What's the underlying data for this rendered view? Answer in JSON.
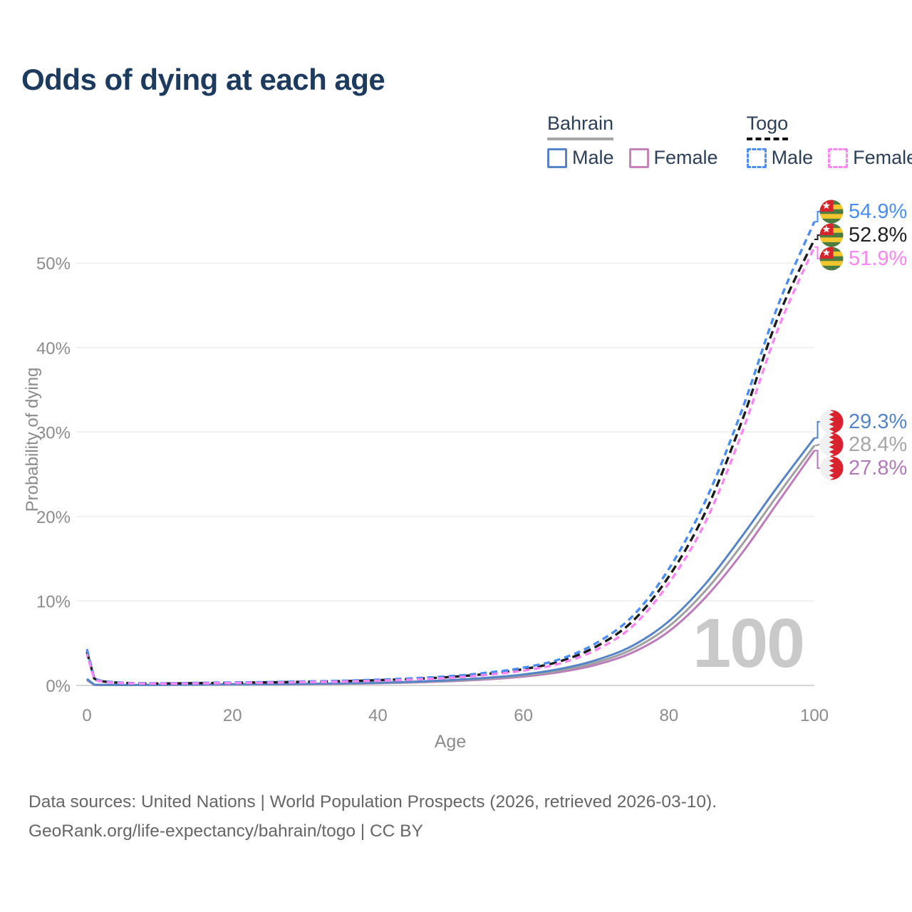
{
  "title": "Odds of dying at each age",
  "legend": {
    "groups": [
      {
        "country": "Bahrain",
        "underline_style": "solid",
        "underline_color": "#a6a6a6",
        "items": [
          {
            "label": "Male",
            "color": "#5585c6",
            "dashed": false
          },
          {
            "label": "Female",
            "color": "#c583bd",
            "dashed": false
          }
        ]
      },
      {
        "country": "Togo",
        "underline_style": "dashed",
        "underline_color": "#151515",
        "items": [
          {
            "label": "Male",
            "color": "#4a8df8",
            "dashed": true
          },
          {
            "label": "Female",
            "color": "#fb86f3",
            "dashed": true
          }
        ]
      }
    ]
  },
  "chart_data": {
    "type": "line",
    "title": "Odds of dying at each age",
    "xlabel": "Age",
    "ylabel": "Probability of dying",
    "xlim": [
      0,
      100
    ],
    "ylim_percent": [
      0,
      57
    ],
    "grid": "horizontal-only",
    "x_ticks": [
      0,
      20,
      40,
      60,
      80,
      100
    ],
    "y_ticks": [
      {
        "value": 0,
        "label": "0%"
      },
      {
        "value": 10,
        "label": "10%"
      },
      {
        "value": 20,
        "label": "20%"
      },
      {
        "value": 30,
        "label": "30%"
      },
      {
        "value": 40,
        "label": "40%"
      },
      {
        "value": 50,
        "label": "50%"
      }
    ],
    "ages": [
      0,
      1,
      2,
      5,
      10,
      15,
      20,
      25,
      30,
      35,
      40,
      45,
      50,
      55,
      60,
      65,
      70,
      75,
      80,
      85,
      90,
      95,
      100
    ],
    "series": [
      {
        "id": "bahrain_female",
        "name": "Bahrain Female",
        "country": "Bahrain",
        "sex": "female",
        "line_style": "solid",
        "color": "#bc7cba",
        "values": [
          0.62,
          0.075,
          0.05,
          0.04,
          0.055,
          0.085,
          0.11,
          0.13,
          0.15,
          0.19,
          0.25,
          0.35,
          0.5,
          0.72,
          1.05,
          1.58,
          2.45,
          3.9,
          6.4,
          10.4,
          15.6,
          21.7,
          27.8
        ],
        "end_label": "27.8%"
      },
      {
        "id": "bahrain_overall",
        "name": "Bahrain Both sexes",
        "country": "Bahrain",
        "sex": "overall",
        "line_style": "solid",
        "color": "#a0a0a0",
        "values": [
          0.7,
          0.08,
          0.055,
          0.045,
          0.06,
          0.1,
          0.12,
          0.14,
          0.17,
          0.21,
          0.28,
          0.4,
          0.56,
          0.8,
          1.17,
          1.76,
          2.72,
          4.3,
          7.0,
          11.2,
          16.6,
          22.6,
          28.4
        ],
        "end_label": "28.4%"
      },
      {
        "id": "bahrain_male",
        "name": "Bahrain Male",
        "country": "Bahrain",
        "sex": "male",
        "line_style": "solid",
        "color": "#5585c6",
        "values": [
          0.78,
          0.09,
          0.06,
          0.05,
          0.07,
          0.11,
          0.14,
          0.16,
          0.19,
          0.24,
          0.32,
          0.45,
          0.63,
          0.9,
          1.3,
          1.95,
          3.0,
          4.7,
          7.6,
          12.0,
          17.6,
          23.6,
          29.3
        ],
        "end_label": "29.3%"
      },
      {
        "id": "togo_overall",
        "name": "Togo Both sexes",
        "country": "Togo",
        "sex": "overall",
        "line_style": "dashed",
        "color": "#1c1c1c",
        "values": [
          4.0,
          0.83,
          0.5,
          0.3,
          0.23,
          0.27,
          0.32,
          0.37,
          0.43,
          0.5,
          0.62,
          0.78,
          1.0,
          1.37,
          1.92,
          2.85,
          4.6,
          7.6,
          12.9,
          20.5,
          31.2,
          43.6,
          52.8
        ],
        "end_label": "52.8%"
      },
      {
        "id": "togo_male",
        "name": "Togo Male",
        "country": "Togo",
        "sex": "male",
        "line_style": "dashed",
        "color": "#4a8df8",
        "values": [
          4.3,
          0.9,
          0.55,
          0.32,
          0.25,
          0.3,
          0.35,
          0.4,
          0.47,
          0.55,
          0.68,
          0.85,
          1.1,
          1.5,
          2.1,
          3.1,
          5.0,
          8.2,
          13.8,
          21.8,
          32.5,
          45.0,
          54.9
        ],
        "end_label": "54.9%"
      },
      {
        "id": "togo_female",
        "name": "Togo Female",
        "country": "Togo",
        "sex": "female",
        "line_style": "dashed",
        "color": "#fb86f3",
        "values": [
          3.7,
          0.76,
          0.46,
          0.27,
          0.21,
          0.24,
          0.29,
          0.33,
          0.39,
          0.45,
          0.56,
          0.7,
          0.9,
          1.25,
          1.75,
          2.6,
          4.2,
          7.0,
          12.1,
          19.3,
          29.8,
          42.2,
          51.9
        ],
        "end_label": "51.9%"
      }
    ],
    "watermark": "100"
  },
  "end_labels": [
    {
      "series": "togo_male",
      "text": "54.9%",
      "value": 54.9,
      "flag": "togo",
      "color": "#4a8df8"
    },
    {
      "series": "togo_overall",
      "text": "52.8%",
      "value": 52.8,
      "flag": "togo",
      "color": "#222222"
    },
    {
      "series": "togo_female",
      "text": "51.9%",
      "value": 51.9,
      "flag": "togo",
      "color": "#fb86f3"
    },
    {
      "series": "bahrain_male",
      "text": "29.3%",
      "value": 29.3,
      "flag": "bahrain",
      "color": "#5585c6"
    },
    {
      "series": "bahrain_overall",
      "text": "28.4%",
      "value": 28.4,
      "flag": "bahrain",
      "color": "#a7a7a7"
    },
    {
      "series": "bahrain_female",
      "text": "27.8%",
      "value": 27.8,
      "flag": "bahrain",
      "color": "#b279b8"
    }
  ],
  "flags": {
    "togo": {
      "green": "#4d7c42",
      "yellow": "#f2c72e",
      "red": "#d8232a",
      "star": "#ffffff"
    },
    "bahrain": {
      "white": "#f0f0f0",
      "red": "#d8232f"
    }
  },
  "footer": {
    "line1": "Data sources: United Nations | World Population Prospects (2026, retrieved 2026-03-10).",
    "line2": "GeoRank.org/life-expectancy/bahrain/togo | CC BY"
  },
  "colors": {
    "title": "#1d3b5f",
    "legend_text": "#2e4057",
    "axis_text": "#8c8c8c",
    "grid": "#ececec",
    "axis_line": "#d6d6d6",
    "watermark": "#c9c9c9",
    "footer_text": "#666666"
  }
}
